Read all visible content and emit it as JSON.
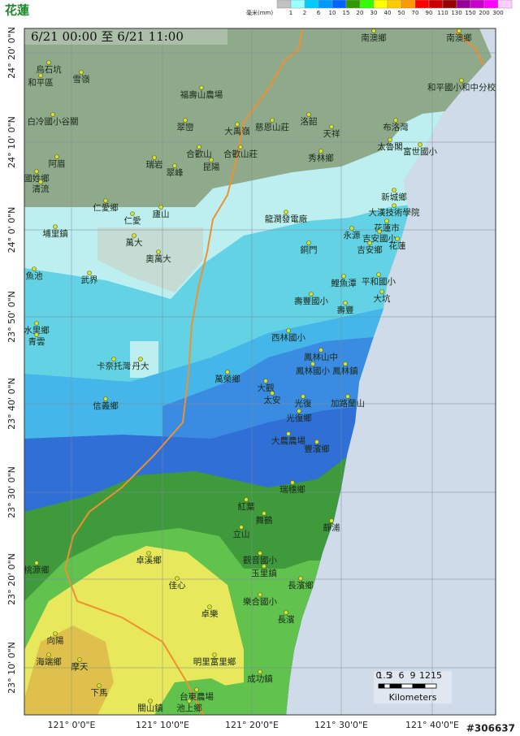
{
  "header": {
    "title": "花蓮",
    "unit": "毫米(mm)"
  },
  "legend": {
    "items": [
      {
        "label": "1",
        "color": "#99ffff"
      },
      {
        "label": "2",
        "color": "#00ccff"
      },
      {
        "label": "6",
        "color": "#0099ff"
      },
      {
        "label": "10",
        "color": "#0066ff"
      },
      {
        "label": "15",
        "color": "#339900"
      },
      {
        "label": "20",
        "color": "#33ff00"
      },
      {
        "label": "30",
        "color": "#ffff00"
      },
      {
        "label": "40",
        "color": "#ffcc00"
      },
      {
        "label": "50",
        "color": "#ff9900"
      },
      {
        "label": "70",
        "color": "#ff0000"
      },
      {
        "label": "90",
        "color": "#cc0000"
      },
      {
        "label": "110",
        "color": "#990000"
      },
      {
        "label": "130",
        "color": "#990099"
      },
      {
        "label": "150",
        "color": "#cc00cc"
      },
      {
        "label": "200",
        "color": "#ff00ff"
      },
      {
        "label": "300",
        "color": "#ffccff"
      }
    ]
  },
  "map": {
    "time_range": "6/21 00:00 至 6/21 11:00",
    "lat_labels": [
      "24° 20' 0\"N",
      "24° 10' 0\"N",
      "24° 0' 0\"N",
      "23° 50' 0\"N",
      "23° 40' 0\"N",
      "23° 30' 0\"N",
      "23° 20' 0\"N",
      "23° 10' 0\"N"
    ],
    "lon_labels": [
      "121° 0'0\"E",
      "121° 10'0\"E",
      "121° 20'0\"E",
      "121° 30'0\"E",
      "121° 40'0\"E"
    ],
    "places": [
      "南澳鄉",
      "南澳鄉",
      "烏石坑",
      "和平區",
      "雪嶺",
      "福壽山農場",
      "和平國小和中分校",
      "白冷國小谷關",
      "翠巒",
      "大禹嶺",
      "慈恩山莊",
      "洛韶",
      "天祥",
      "布洛灣",
      "合歡山",
      "合歡山莊",
      "秀林鄉",
      "太魯閣",
      "富世國小",
      "阿眉",
      "瑞岩",
      "翠峰",
      "昆陽",
      "國姓鄉",
      "清流",
      "仁愛鄉",
      "新城鄉",
      "大漢技術學院",
      "廬山",
      "仁愛",
      "龍澗發電廠",
      "花蓮市",
      "永源",
      "吉安國小",
      "埔里鎮",
      "萬大",
      "銅門",
      "吉安鄉",
      "花蓮",
      "奧萬大",
      "魚池",
      "武界",
      "鯉魚潭",
      "平和國小",
      "壽豐國小",
      "大坑",
      "壽豐",
      "水里鄉",
      "青雲",
      "西林國小",
      "鳳林山中",
      "卡奈托灣",
      "丹大",
      "鳳林國小",
      "鳳林鎮",
      "萬榮鄉",
      "大觀",
      "太安",
      "光復",
      "加路蘭山",
      "信義鄉",
      "光復鄉",
      "大農農場",
      "豐濱鄉",
      "瑞穗鄉",
      "紅葉",
      "舞鶴",
      "靜浦",
      "立山",
      "卓溪鄉",
      "觀音國小",
      "玉里鎮",
      "桃源鄉",
      "佳心",
      "長濱鄉",
      "樂合國小",
      "卓樂",
      "長濱",
      "向陽",
      "海端鄉",
      "摩天",
      "明里富里鄉",
      "成功鎮",
      "下馬",
      "台東農場",
      "關山鎮",
      "池上鄉"
    ],
    "scale_bar": {
      "ticks": [
        "0",
        "1.5",
        "3",
        "6",
        "9",
        "12",
        "15"
      ],
      "unit": "Kilometers"
    }
  },
  "watermark": "#306637"
}
